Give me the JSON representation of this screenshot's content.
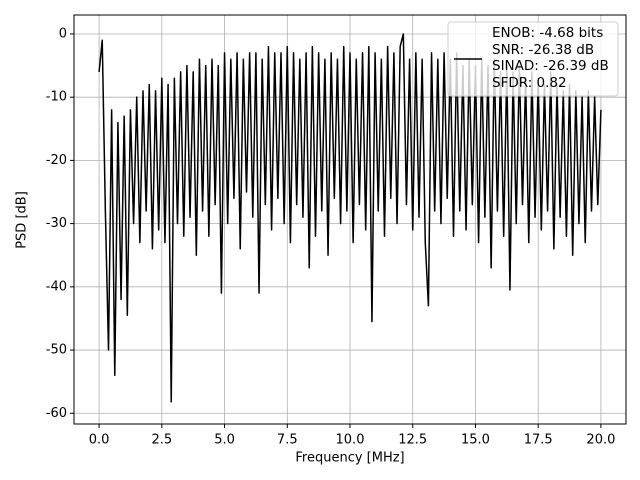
{
  "chart_data": {
    "type": "line",
    "xlabel": "Frequency [MHz]",
    "ylabel": "PSD [dB]",
    "x": [
      0,
      0.125,
      0.25,
      0.375,
      0.5,
      0.625,
      0.75,
      0.875,
      1,
      1.125,
      1.25,
      1.375,
      1.5,
      1.625,
      1.75,
      1.875,
      2,
      2.125,
      2.25,
      2.375,
      2.5,
      2.625,
      2.75,
      2.875,
      3,
      3.125,
      3.25,
      3.375,
      3.5,
      3.625,
      3.75,
      3.875,
      4,
      4.125,
      4.25,
      4.375,
      4.5,
      4.625,
      4.75,
      4.875,
      5,
      5.125,
      5.25,
      5.375,
      5.5,
      5.625,
      5.75,
      5.875,
      6,
      6.125,
      6.25,
      6.375,
      6.5,
      6.625,
      6.75,
      6.875,
      7,
      7.125,
      7.25,
      7.375,
      7.5,
      7.625,
      7.75,
      7.875,
      8,
      8.125,
      8.25,
      8.375,
      8.5,
      8.625,
      8.75,
      8.875,
      9,
      9.125,
      9.25,
      9.375,
      9.5,
      9.625,
      9.75,
      9.875,
      10,
      10.125,
      10.25,
      10.375,
      10.5,
      10.625,
      10.75,
      10.875,
      11,
      11.125,
      11.25,
      11.375,
      11.5,
      11.625,
      11.75,
      11.875,
      12,
      12.125,
      12.25,
      12.375,
      12.5,
      12.625,
      12.75,
      12.875,
      13,
      13.125,
      13.25,
      13.375,
      13.5,
      13.625,
      13.75,
      13.875,
      14,
      14.125,
      14.25,
      14.375,
      14.5,
      14.625,
      14.75,
      14.875,
      15,
      15.125,
      15.25,
      15.375,
      15.5,
      15.625,
      15.75,
      15.875,
      16,
      16.125,
      16.25,
      16.375,
      16.5,
      16.625,
      16.75,
      16.875,
      17,
      17.125,
      17.25,
      17.375,
      17.5,
      17.625,
      17.75,
      17.875,
      18,
      18.125,
      18.25,
      18.375,
      18.5,
      18.625,
      18.75,
      18.875,
      19,
      19.125,
      19.25,
      19.375,
      19.5,
      19.625,
      19.75,
      19.875,
      20
    ],
    "series": [
      {
        "name": "ENOB: -4.68 bits\nSNR: -26.38 dB\nSINAD: -26.39 dB\nSFDR: 0.82",
        "color": "#000000",
        "values": [
          -6,
          -1,
          -28,
          -50,
          -12,
          -54,
          -14,
          -42,
          -13,
          -44.5,
          -12,
          -30,
          -10,
          -33,
          -9,
          -28,
          -8,
          -34,
          -9,
          -31,
          -7,
          -33,
          -8,
          -58.2,
          -7,
          -30,
          -6,
          -32,
          -5,
          -29,
          -6,
          -35,
          -4,
          -28,
          -5,
          -32,
          -4,
          -27,
          -5,
          -41,
          -3,
          -30,
          -4,
          -26,
          -3,
          -34,
          -4,
          -25,
          -3,
          -29,
          -3,
          -41,
          -4,
          -27,
          -2,
          -31,
          -3,
          -26,
          -3,
          -30,
          -2,
          -33,
          -3,
          -27,
          -4,
          -29,
          -3,
          -37,
          -2,
          -32,
          -3,
          -28,
          -4,
          -35,
          -3,
          -26,
          -4,
          -30,
          -2,
          -28,
          -3,
          -33,
          -4,
          -27,
          -3,
          -31,
          -2,
          -45.5,
          -3,
          -28,
          -4,
          -32,
          -2,
          -26,
          -3,
          -30,
          -2,
          0,
          -27,
          -4,
          -31,
          -3,
          -29,
          -4,
          -33,
          -43,
          -3,
          -28,
          -4,
          -30,
          -3,
          -26,
          -4,
          -32,
          -3,
          -28,
          -5,
          -31,
          -4,
          -27,
          -5,
          -33,
          -4,
          -29,
          -5,
          -37,
          -4,
          -28,
          -6,
          -32,
          -5,
          -40.5,
          -6,
          -30,
          -5,
          -27,
          -7,
          -33,
          -6,
          -29,
          -7,
          -31,
          -8,
          -28,
          -6,
          -34,
          -8,
          -29,
          -9,
          -32,
          -8,
          -35,
          -9,
          -30,
          -10,
          -33,
          -9,
          -28,
          -10,
          -27,
          -12
        ]
      }
    ],
    "xlim": [
      -1,
      21
    ],
    "ylim": [
      -61.7,
      3
    ],
    "xticks": [
      {
        "value": 0,
        "label": "0.0"
      },
      2.5,
      {
        "value": 5,
        "label": "5.0"
      },
      7.5,
      {
        "value": 10,
        "label": "10.0"
      },
      12.5,
      {
        "value": 15,
        "label": "15.0"
      },
      17.5,
      {
        "value": 20,
        "label": "20.0"
      }
    ],
    "yticks": [
      0,
      -10,
      -20,
      -30,
      -40,
      -50,
      -60
    ],
    "grid": true,
    "legend": "upper right"
  }
}
